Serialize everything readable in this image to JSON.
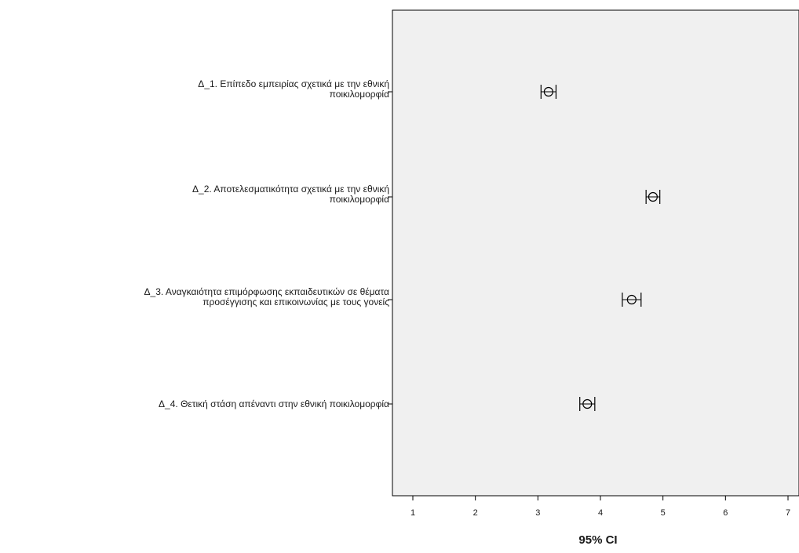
{
  "chart_data": {
    "type": "error-bar",
    "xlabel": "95% CI",
    "xlim": [
      0.7,
      7.2
    ],
    "x_ticks": [
      1,
      2,
      3,
      4,
      5,
      6,
      7
    ],
    "categories": [
      [
        "Δ_1. Επίπεδο εμπειρίας σχετικά με την εθνική",
        "ποικιλομορφία"
      ],
      [
        "Δ_2. Αποτελεσματικότητα σχετικά με την εθνική",
        "ποικιλομορφία"
      ],
      [
        "Δ_3. Αναγκαιότητα επιμόρφωσης εκπαιδευτικών σε θέματα",
        "προσέγγισης και επικοινωνίας με τους γονείς"
      ],
      [
        "Δ_4. Θετική στάση απέναντι στην εθνική ποικιλομορφία"
      ]
    ],
    "series": [
      {
        "means": [
          3.17,
          4.84,
          4.5,
          3.79
        ],
        "lower": [
          3.05,
          4.73,
          4.35,
          3.67
        ],
        "upper": [
          3.29,
          4.95,
          4.65,
          3.91
        ]
      }
    ],
    "grid": false,
    "legend": "none",
    "colors": {
      "plot_background": "#f0f0f0",
      "axis": "#000000",
      "marker": "#000000"
    }
  }
}
